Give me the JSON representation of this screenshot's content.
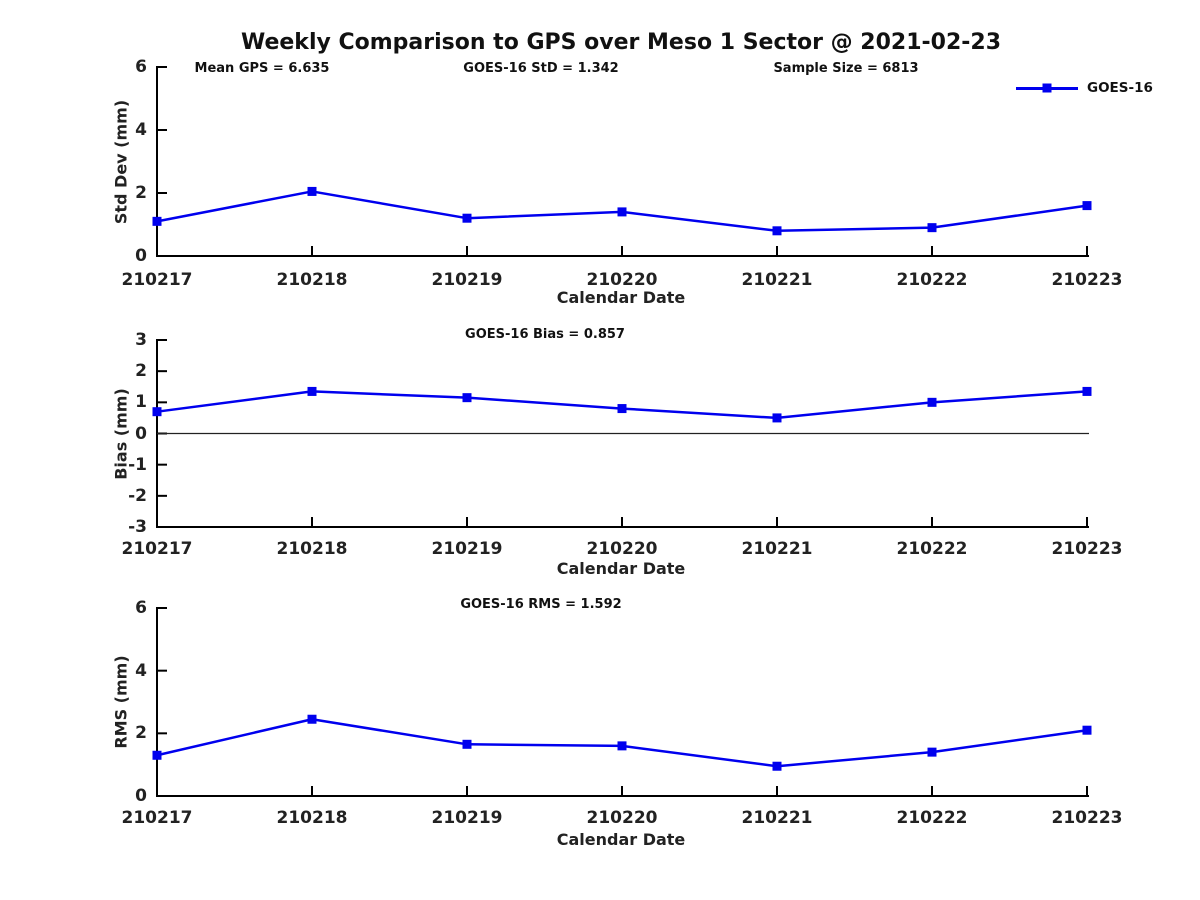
{
  "title": "Weekly Comparison to GPS over Meso 1 Sector @ 2021-02-23",
  "legend": {
    "label": "GOES-16"
  },
  "colors": {
    "series": "#0000ee",
    "axis": "#000000",
    "zero_line": "#222222"
  },
  "chart_data": [
    {
      "type": "line",
      "name": "std-dev",
      "title": "",
      "annotations": [
        "Mean GPS = 6.635",
        "GOES-16 StD = 1.342",
        "Sample Size = 6813"
      ],
      "ylabel": "Std Dev (mm)",
      "xlabel": "Calendar Date",
      "categories": [
        "210217",
        "210218",
        "210219",
        "210220",
        "210221",
        "210222",
        "210223"
      ],
      "series": [
        {
          "name": "GOES-16",
          "values": [
            1.1,
            2.05,
            1.2,
            1.4,
            0.8,
            0.9,
            1.6
          ]
        }
      ],
      "ylim": [
        0,
        6
      ],
      "yticks": [
        0,
        2,
        4,
        6
      ],
      "grid": false,
      "legend_position": "top-right",
      "zero_line": false
    },
    {
      "type": "line",
      "name": "bias",
      "title": "",
      "annotations": [
        "GOES-16 Bias  = 0.857"
      ],
      "ylabel": "Bias (mm)",
      "xlabel": "Calendar Date",
      "categories": [
        "210217",
        "210218",
        "210219",
        "210220",
        "210221",
        "210222",
        "210223"
      ],
      "series": [
        {
          "name": "GOES-16",
          "values": [
            0.7,
            1.35,
            1.15,
            0.8,
            0.5,
            1.0,
            1.35
          ]
        }
      ],
      "ylim": [
        -3,
        3
      ],
      "yticks": [
        -3,
        -2,
        -1,
        0,
        1,
        2,
        3
      ],
      "grid": false,
      "zero_line": true
    },
    {
      "type": "line",
      "name": "rms",
      "title": "",
      "annotations": [
        "GOES-16 RMS = 1.592"
      ],
      "ylabel": "RMS (mm)",
      "xlabel": "Calendar Date",
      "categories": [
        "210217",
        "210218",
        "210219",
        "210220",
        "210221",
        "210222",
        "210223"
      ],
      "series": [
        {
          "name": "GOES-16",
          "values": [
            1.3,
            2.45,
            1.65,
            1.6,
            0.95,
            1.4,
            2.1
          ]
        }
      ],
      "ylim": [
        0,
        6
      ],
      "yticks": [
        0,
        2,
        4,
        6
      ],
      "grid": false,
      "zero_line": false
    }
  ]
}
